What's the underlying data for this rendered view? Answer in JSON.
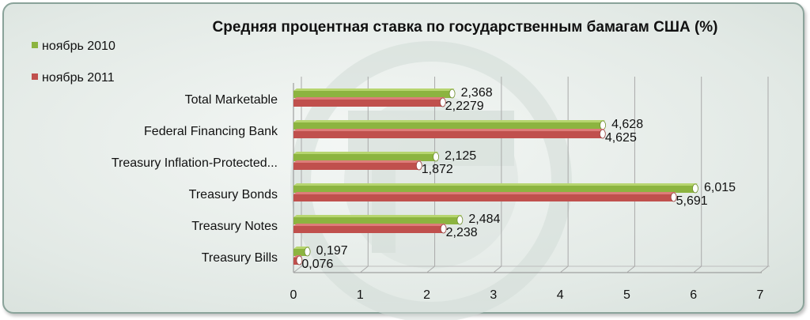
{
  "chart_data": {
    "type": "bar",
    "orientation": "horizontal",
    "title": "Средняя процентная ставка по государственным бамагам США (%)",
    "categories": [
      "Total Marketable",
      "Federal Financing Bank",
      "Treasury Inflation-Protected...",
      "Treasury Bonds",
      "Treasury Notes",
      "Treasury Bills"
    ],
    "series": [
      {
        "name": "ноябрь 2010",
        "color": "#8cb440",
        "values": [
          2.368,
          4.628,
          2.125,
          6.015,
          2.484,
          0.197
        ],
        "labels": [
          "2,368",
          "4,628",
          "2,125",
          "6,015",
          "2,484",
          "0,197"
        ]
      },
      {
        "name": "ноябрь 2011",
        "color": "#c0504d",
        "values": [
          2.2279,
          4.625,
          1.872,
          5.691,
          2.238,
          0.076
        ],
        "labels": [
          "2,2279",
          "4,625",
          "1,872",
          "5,691",
          "2,238",
          "0,076"
        ]
      }
    ],
    "xlim": [
      0,
      7
    ],
    "xticks": [
      "0",
      "1",
      "2",
      "3",
      "4",
      "5",
      "6",
      "7"
    ],
    "grid": true,
    "legend_position": "top-left"
  }
}
